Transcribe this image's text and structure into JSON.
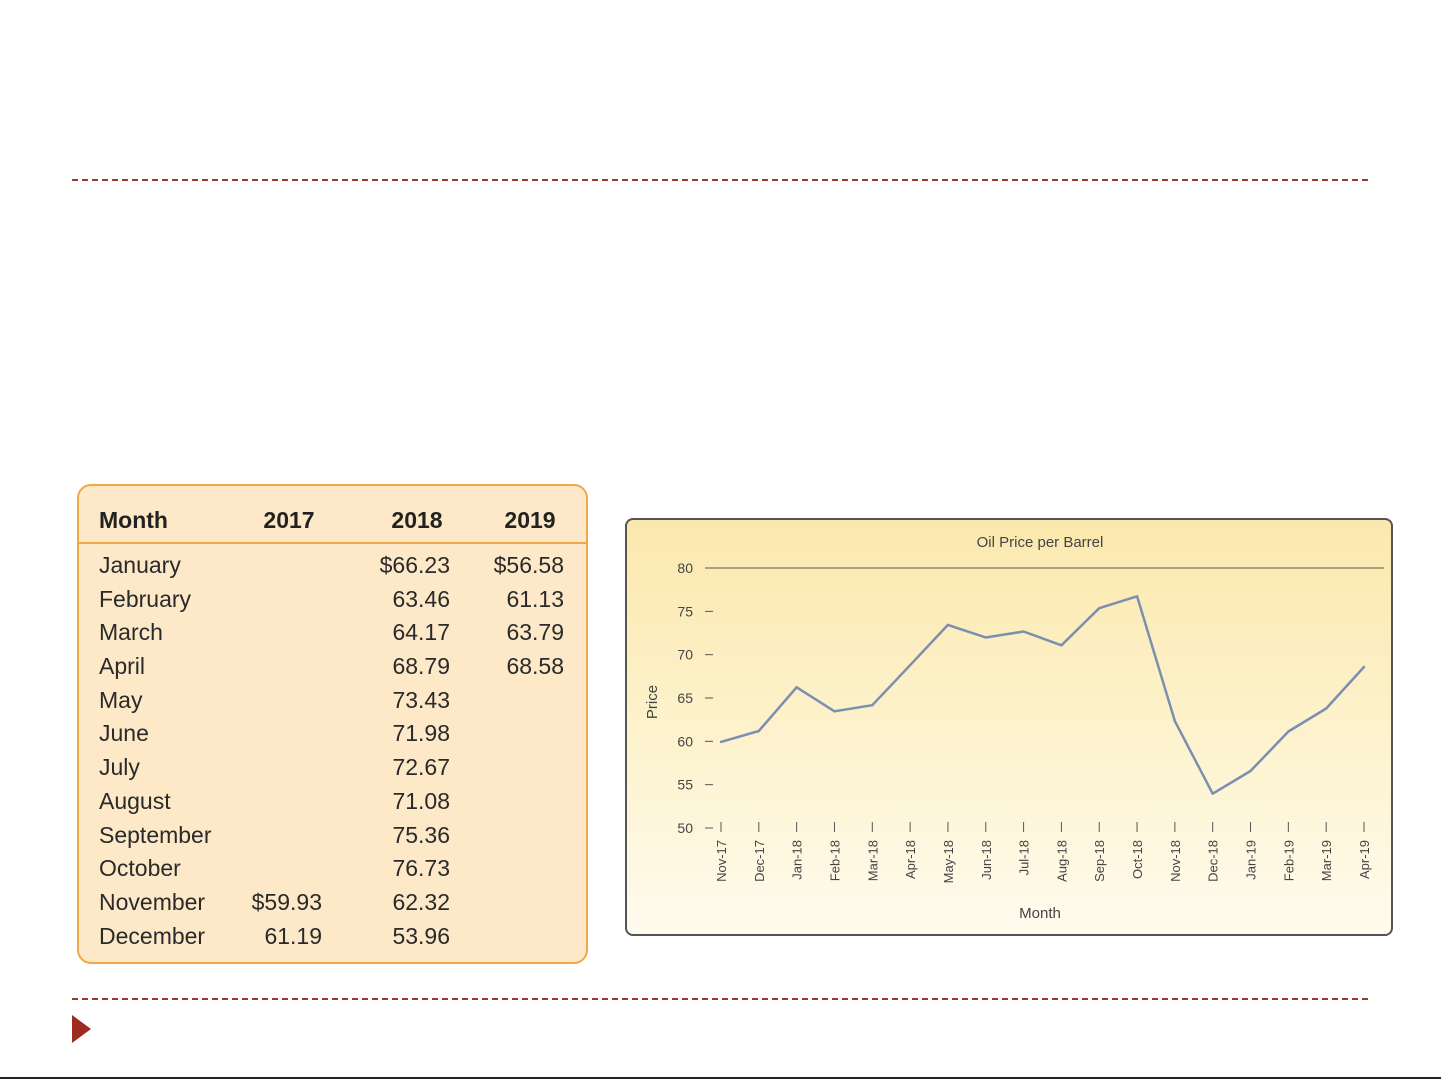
{
  "table": {
    "headers": {
      "month": "Month",
      "y2017": "2017",
      "y2018": "2018",
      "y2019": "2019"
    },
    "rows": [
      {
        "month": "January",
        "y2017": "",
        "y2018": "$66.23",
        "y2019": "$56.58"
      },
      {
        "month": "February",
        "y2017": "",
        "y2018": "63.46",
        "y2019": "61.13"
      },
      {
        "month": "March",
        "y2017": "",
        "y2018": "64.17",
        "y2019": "63.79"
      },
      {
        "month": "April",
        "y2017": "",
        "y2018": "68.79",
        "y2019": "68.58"
      },
      {
        "month": "May",
        "y2017": "",
        "y2018": "73.43",
        "y2019": ""
      },
      {
        "month": "June",
        "y2017": "",
        "y2018": "71.98",
        "y2019": ""
      },
      {
        "month": "July",
        "y2017": "",
        "y2018": "72.67",
        "y2019": ""
      },
      {
        "month": "August",
        "y2017": "",
        "y2018": "71.08",
        "y2019": ""
      },
      {
        "month": "September",
        "y2017": "",
        "y2018": "75.36",
        "y2019": ""
      },
      {
        "month": "October",
        "y2017": "",
        "y2018": "76.73",
        "y2019": ""
      },
      {
        "month": "November",
        "y2017": "$59.93",
        "y2018": "62.32",
        "y2019": ""
      },
      {
        "month": "December",
        "y2017": "61.19",
        "y2018": "53.96",
        "y2019": ""
      }
    ]
  },
  "chart_data": {
    "type": "line",
    "title": "Oil Price per Barrel",
    "xlabel": "Month",
    "ylabel": "Price",
    "categories": [
      "Nov-17",
      "Dec-17",
      "Jan-18",
      "Feb-18",
      "Mar-18",
      "Apr-18",
      "May-18",
      "Jun-18",
      "Jul-18",
      "Aug-18",
      "Sep-18",
      "Oct-18",
      "Nov-18",
      "Dec-18",
      "Jan-19",
      "Feb-19",
      "Mar-19",
      "Apr-19"
    ],
    "series": [
      {
        "values": [
          59.93,
          61.19,
          66.23,
          63.46,
          64.17,
          68.79,
          73.43,
          71.98,
          72.67,
          71.08,
          75.36,
          76.73,
          62.32,
          53.96,
          56.58,
          61.13,
          63.79,
          68.58
        ]
      }
    ],
    "ylim": [
      50,
      80
    ],
    "yticks": [
      50,
      55,
      60,
      65,
      70,
      75,
      80
    ],
    "grid": false,
    "legend": "none",
    "line_color": "#7c8fb0"
  },
  "colors": {
    "accent": "#9b2c1f",
    "table_bg": "#fde9c8",
    "table_border": "#f0a948"
  },
  "icons": {
    "bullet": "triangle-right-icon"
  }
}
